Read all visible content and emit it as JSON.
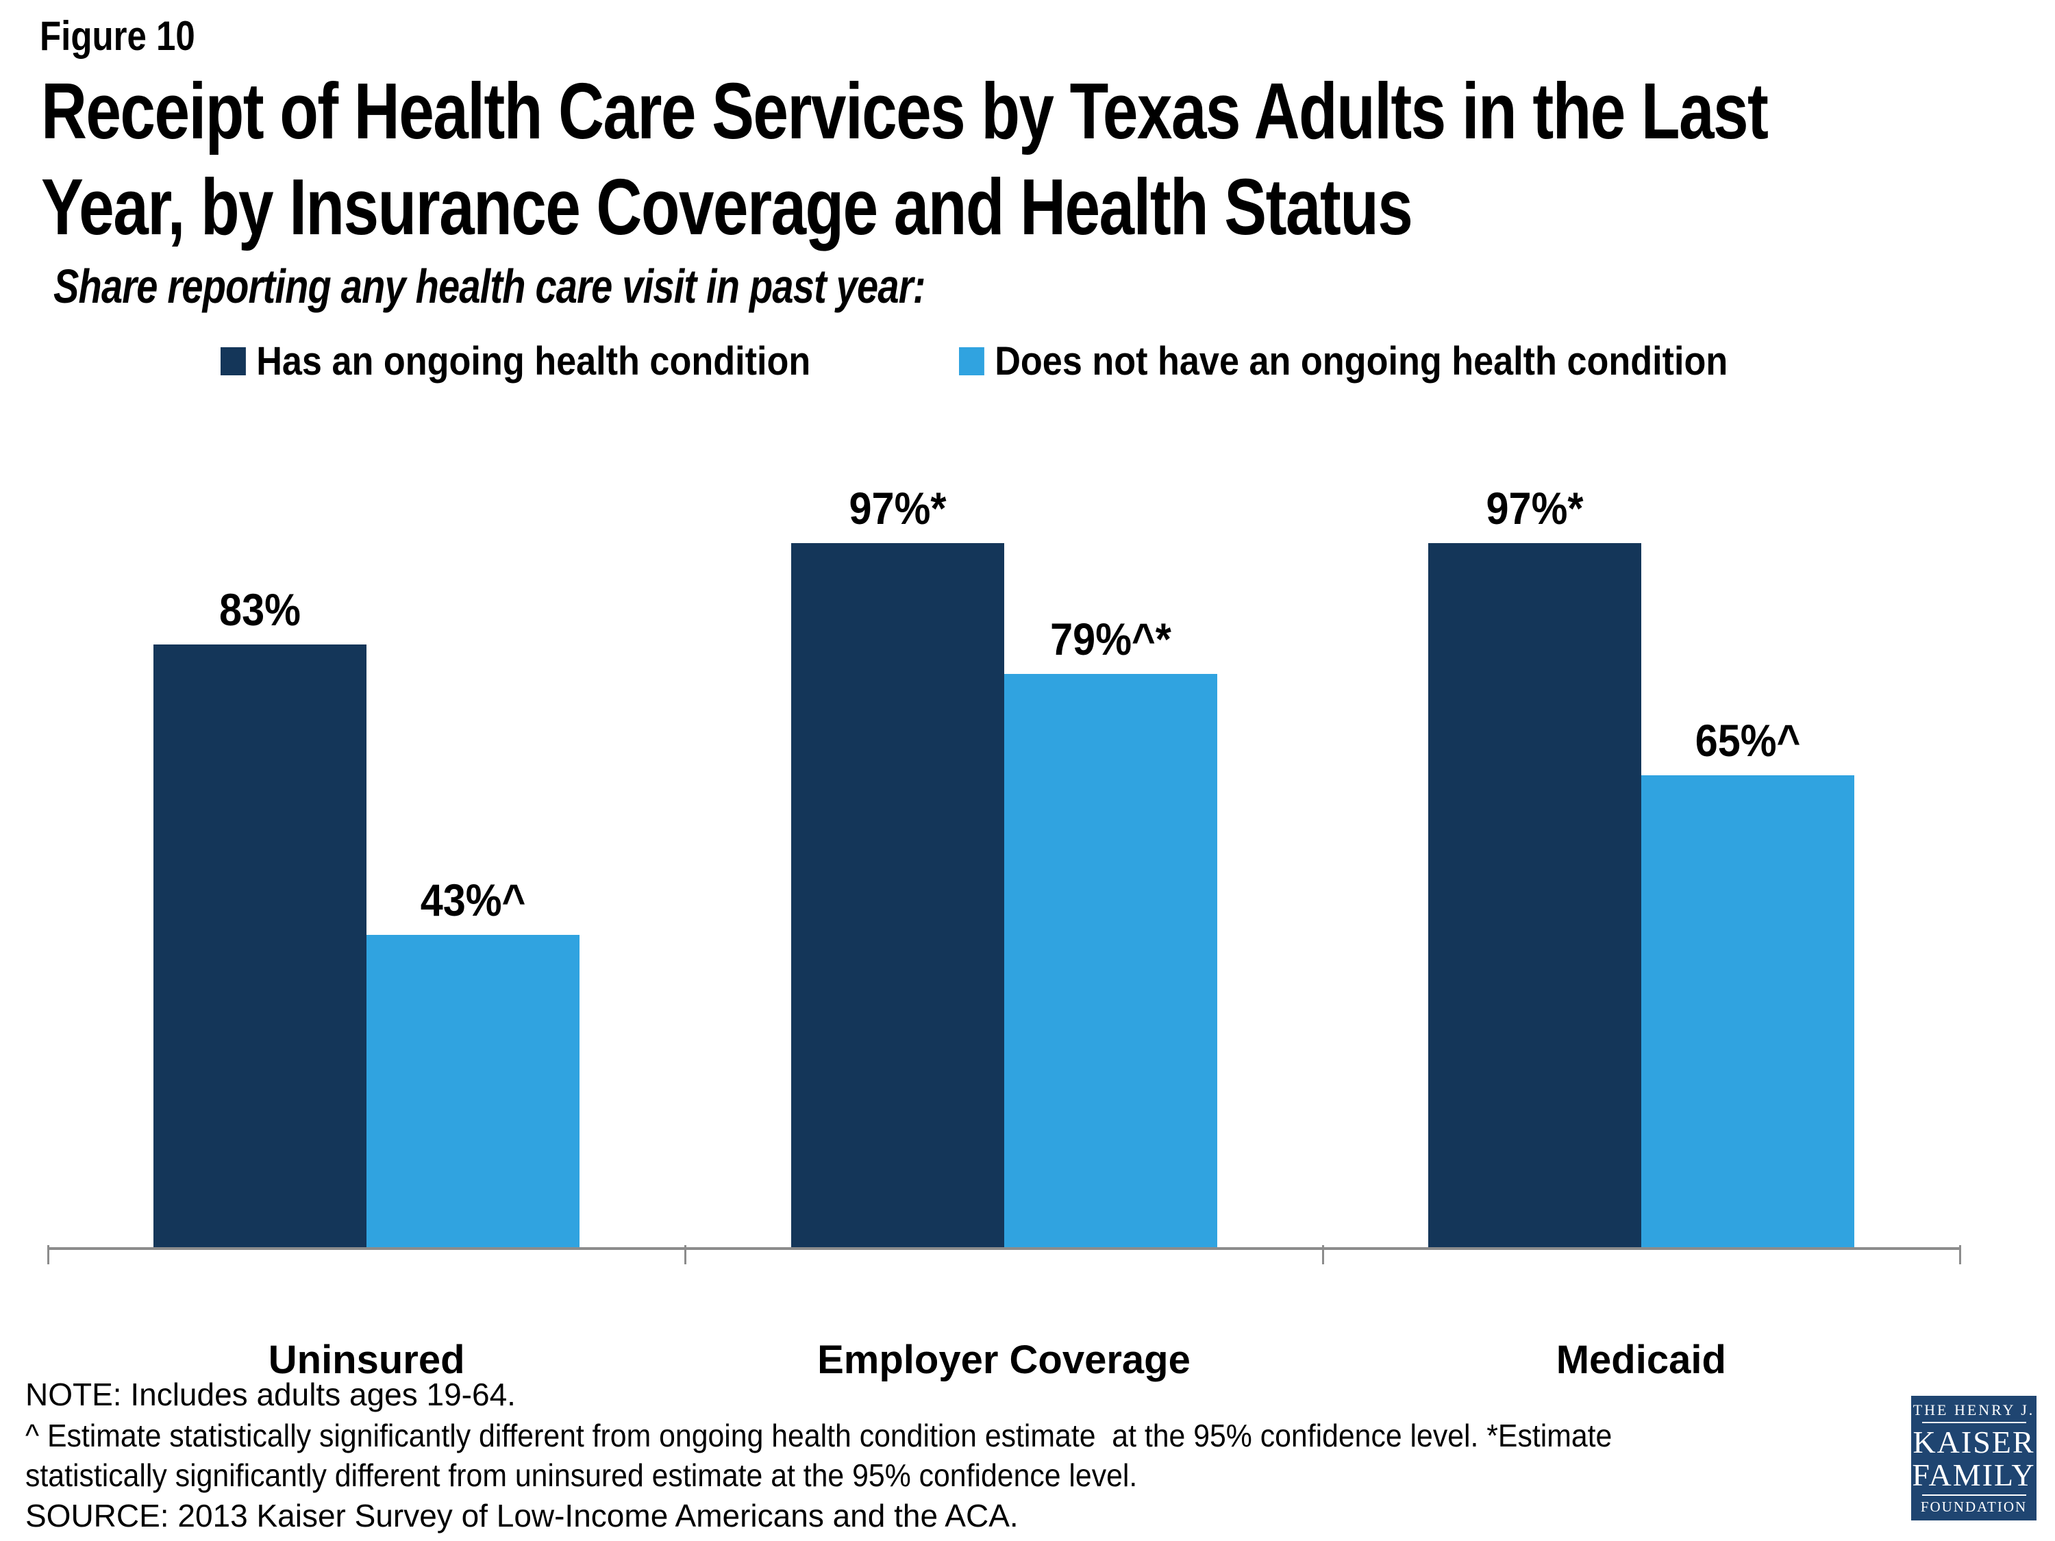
{
  "header": {
    "figure_label": "Figure 10",
    "title_lines": [
      "Receipt of Health Care Services by Texas Adults in the Last",
      "Year, by Insurance Coverage and Health Status"
    ],
    "subtitle": "Share reporting any health care visit in past year:"
  },
  "legend": {
    "items": [
      {
        "label": "Has an ongoing health condition",
        "color": "#143659"
      },
      {
        "label": "Does not have an ongoing health condition",
        "color": "#30A3E0"
      }
    ]
  },
  "chart_data": {
    "type": "bar",
    "title": "Share reporting any health care visit in past year",
    "categories": [
      "Uninsured",
      "Employer Coverage",
      "Medicaid"
    ],
    "series": [
      {
        "name": "Has an ongoing health condition",
        "color": "#143659",
        "values": [
          83,
          97,
          97
        ],
        "labels": [
          "83%",
          "97%*",
          "97%*"
        ]
      },
      {
        "name": "Does not have an ongoing health condition",
        "color": "#30A3E0",
        "values": [
          43,
          79,
          65
        ],
        "labels": [
          "43%^",
          "79%^*",
          "65%^"
        ]
      }
    ],
    "ylim": [
      0,
      100
    ],
    "grid": false,
    "legend_position": "top",
    "axis_color": "#8C8C8C"
  },
  "footer": {
    "note": "NOTE: Includes adults ages 19-64.",
    "footnote_lines": [
      "^ Estimate statistically significantly different from ongoing health condition estimate  at the 95% confidence level. *Estimate",
      "statistically significantly different from uninsured estimate at the 95% confidence level."
    ],
    "source": "SOURCE: 2013 Kaiser Survey of Low-Income Americans and the ACA."
  },
  "logo": {
    "bg_color": "#1F4571",
    "lines": [
      "THE HENRY J.",
      "KAISER",
      "FAMILY",
      "FOUNDATION"
    ]
  }
}
